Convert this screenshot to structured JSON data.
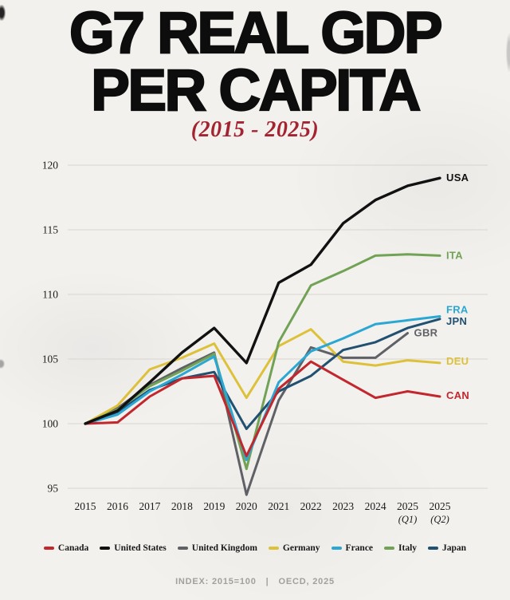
{
  "page": {
    "title_line1": "G7 REAL GDP",
    "title_line2": "PER CAPITA",
    "subtitle": "(2015 - 2025)",
    "footer": {
      "index_note": "INDEX: 2015=100",
      "separator": "|",
      "source": "OECD, 2025"
    }
  },
  "colors": {
    "background": "#f3f1ee",
    "title": "#0d0d0d",
    "subtitle_red": "#a42331",
    "gridline": "#d8d5d0",
    "axis_text": "#1b1b1b",
    "footer_text": "#a2a09c"
  },
  "chart_data": {
    "type": "line",
    "title": "G7 REAL GDP PER CAPITA",
    "subtitle": "(2015 - 2025)",
    "index_note": "INDEX: 2015=100",
    "source": "OECD, 2025",
    "grid": "horizontal-only",
    "legend_position": "bottom",
    "ylim": [
      93.5,
      121
    ],
    "y_ticks": [
      120,
      115,
      110,
      105,
      100,
      95
    ],
    "x_labels": [
      {
        "line1": "2015"
      },
      {
        "line1": "2016"
      },
      {
        "line1": "2017"
      },
      {
        "line1": "2018"
      },
      {
        "line1": "2019"
      },
      {
        "line1": "2020"
      },
      {
        "line1": "2021"
      },
      {
        "line1": "2022"
      },
      {
        "line1": "2023"
      },
      {
        "line1": "2024"
      },
      {
        "line1": "2025",
        "line2": "(Q1)"
      },
      {
        "line1": "2025",
        "line2": "(Q2)"
      }
    ],
    "draw_order": [
      "GBR",
      "DEU",
      "ITA",
      "JPN",
      "FRA",
      "CAN",
      "USA"
    ],
    "series": [
      {
        "name": "Canada",
        "code": "CAN",
        "color": "#c1272d",
        "label_dy": -1,
        "values": [
          100,
          100.1,
          102.1,
          103.5,
          103.7,
          97.5,
          102.7,
          104.8,
          103.4,
          102.0,
          102.5,
          102.1
        ]
      },
      {
        "name": "United States",
        "code": "USA",
        "color": "#111111",
        "label_dy": 0,
        "values": [
          100,
          101.0,
          103.2,
          105.5,
          107.4,
          104.7,
          110.9,
          112.3,
          115.5,
          117.3,
          118.4,
          119.0
        ]
      },
      {
        "name": "United Kingdom",
        "code": "GBR",
        "color": "#5f6166",
        "label_dy": 0,
        "values": [
          100,
          101.2,
          103.0,
          104.3,
          105.5,
          94.5,
          101.8,
          105.9,
          105.1,
          105.1,
          107.0,
          null
        ]
      },
      {
        "name": "Germany",
        "code": "DEU",
        "color": "#ddc13b",
        "label_dy": -2,
        "values": [
          100,
          101.4,
          104.2,
          105.1,
          106.2,
          102.0,
          106.0,
          107.3,
          104.8,
          104.5,
          104.9,
          104.7
        ]
      },
      {
        "name": "France",
        "code": "FRA",
        "color": "#2ba7d3",
        "label_dy": -8,
        "values": [
          100,
          100.7,
          102.5,
          103.8,
          105.2,
          97.2,
          103.2,
          105.6,
          106.6,
          107.7,
          108.0,
          108.3
        ]
      },
      {
        "name": "Italy",
        "code": "ITA",
        "color": "#71a255",
        "label_dy": 0,
        "values": [
          100,
          101.1,
          102.9,
          104.1,
          105.4,
          96.5,
          106.3,
          110.7,
          111.8,
          113.0,
          113.1,
          113.0
        ]
      },
      {
        "name": "Japan",
        "code": "JPN",
        "color": "#215070",
        "label_dy": 3,
        "values": [
          100,
          100.9,
          102.6,
          103.5,
          104.0,
          99.6,
          102.5,
          103.7,
          105.7,
          106.3,
          107.4,
          108.1
        ]
      }
    ]
  }
}
